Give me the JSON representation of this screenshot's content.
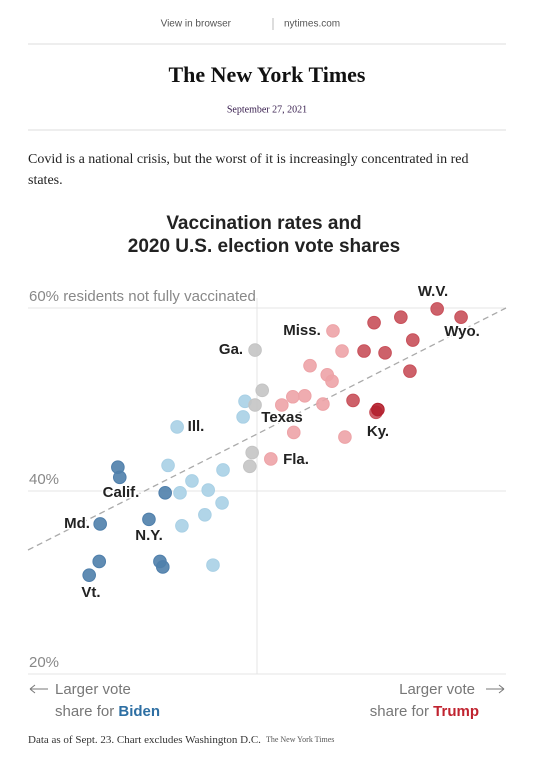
{
  "header": {
    "links": [
      "View in browser",
      "nytimes.com"
    ],
    "logo": "The New York Times",
    "date": "September 27, 2021"
  },
  "intro": "Covid is a national crisis, but the worst of it is increasingly concentrated in red states.",
  "chart_data": {
    "type": "scatter",
    "title": [
      "Vaccination rates and",
      "2020 U.S. election vote shares"
    ],
    "xlim": [
      -48,
      52
    ],
    "ylim": [
      20,
      60
    ],
    "yticks": [
      {
        "value": 60,
        "label": "60% residents not fully vaccinated"
      },
      {
        "value": 40,
        "label": "40%"
      },
      {
        "value": 20,
        "label": "20%"
      }
    ],
    "grid": true,
    "series": [
      {
        "color": "#4f7fab",
        "x": [
          -35.2,
          -33.1,
          -32.9,
          -29.2,
          -28.8,
          -22.7,
          -20.4,
          -19.8,
          -19.3
        ],
        "values": [
          30.8,
          32.3,
          36.4,
          42.6,
          41.5,
          36.9,
          32.3,
          31.7,
          39.8
        ]
      },
      {
        "color": "#a9d0e5",
        "x": [
          -16.8,
          -18.7,
          -16.2,
          -15.8,
          -13.7,
          -11.0,
          -10.3,
          -9.3,
          -7.4,
          -7.2,
          -3.0,
          -2.6
        ],
        "values": [
          47.0,
          42.8,
          39.8,
          36.2,
          41.1,
          37.4,
          40.1,
          31.9,
          38.7,
          42.3,
          48.1,
          49.8
        ]
      },
      {
        "color": "#c4c4c4",
        "x": [
          -0.5,
          1.0,
          -0.5,
          -1.1,
          -1.6
        ],
        "values": [
          55.4,
          51.0,
          49.4,
          44.2,
          42.7
        ]
      },
      {
        "color": "#eda3a7",
        "x": [
          2.8,
          7.6,
          5.1,
          7.4,
          9.9,
          13.7,
          11.0,
          14.6,
          15.6,
          17.7,
          15.8,
          18.3
        ],
        "values": [
          43.5,
          46.4,
          49.4,
          50.3,
          50.4,
          49.5,
          53.7,
          52.7,
          52.0,
          55.3,
          57.5,
          45.9
        ]
      },
      {
        "color": "#c8505a",
        "x": [
          24.4,
          30.0,
          37.6,
          42.6,
          22.3,
          26.7,
          32.5,
          31.9,
          20.0,
          24.8
        ],
        "values": [
          58.4,
          59.0,
          59.9,
          59.0,
          55.3,
          55.1,
          56.5,
          53.1,
          49.9,
          48.6
        ]
      },
      {
        "color": "#b3202e",
        "x": [
          25.2
        ],
        "values": [
          48.9
        ]
      }
    ],
    "annotations": [
      "W.V.",
      "Wyo.",
      "Miss.",
      "Ga.",
      "Ill.",
      "Texas",
      "Ky.",
      "Fla.",
      "Calif.",
      "Md.",
      "N.Y.",
      "Vt."
    ],
    "x_label_left": [
      "Larger vote",
      "share for",
      "Biden"
    ],
    "x_label_right": [
      "Larger vote",
      "share for",
      "Trump"
    ]
  },
  "footer": {
    "note": "Data as of Sept. 23. Chart excludes Washington D.C.",
    "credit": "The New York Times"
  }
}
